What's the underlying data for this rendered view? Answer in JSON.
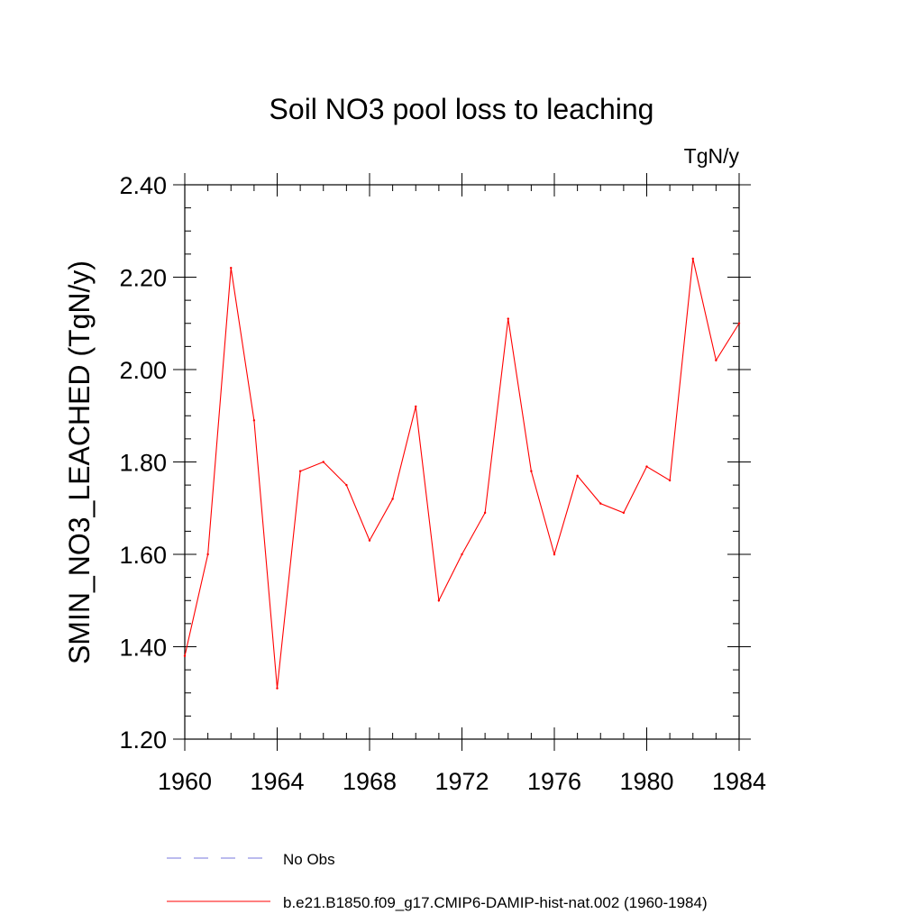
{
  "chart_data": {
    "type": "line",
    "title": "Soil NO3 pool loss to leaching",
    "units_label": "TgN/y",
    "ylabel": "SMIN_NO3_LEACHED  (TgN/y)",
    "xlabel": "",
    "xlim": [
      1960,
      1984
    ],
    "ylim": [
      1.2,
      2.4
    ],
    "x_ticks": [
      1960,
      1964,
      1968,
      1972,
      1976,
      1980,
      1984
    ],
    "x_tick_labels": [
      "1960",
      "1964",
      "1968",
      "1972",
      "1976",
      "1980",
      "1984"
    ],
    "y_ticks": [
      1.2,
      1.4,
      1.6,
      1.8,
      2.0,
      2.2,
      2.4
    ],
    "y_tick_labels": [
      "1.20",
      "1.40",
      "1.60",
      "1.80",
      "2.00",
      "2.20",
      "2.40"
    ],
    "grid": false,
    "legend_position": "bottom",
    "series": [
      {
        "name": "b.e21.B1850.f09_g17.CMIP6-DAMIP-hist-nat.002 (1960-1984)",
        "color": "#ff0000",
        "dash": "solid",
        "x": [
          1960,
          1961,
          1962,
          1963,
          1964,
          1965,
          1966,
          1967,
          1968,
          1969,
          1970,
          1971,
          1972,
          1973,
          1974,
          1975,
          1976,
          1977,
          1978,
          1979,
          1980,
          1981,
          1982,
          1983,
          1984
        ],
        "y": [
          1.38,
          1.6,
          2.22,
          1.89,
          1.31,
          1.78,
          1.8,
          1.75,
          1.63,
          1.72,
          1.92,
          1.5,
          1.6,
          1.69,
          2.11,
          1.78,
          1.6,
          1.77,
          1.71,
          1.69,
          1.79,
          1.76,
          2.24,
          2.02,
          2.1
        ]
      },
      {
        "name": "No Obs",
        "color": "#7777dd",
        "dash": "dashed",
        "x": [],
        "y": []
      }
    ]
  }
}
